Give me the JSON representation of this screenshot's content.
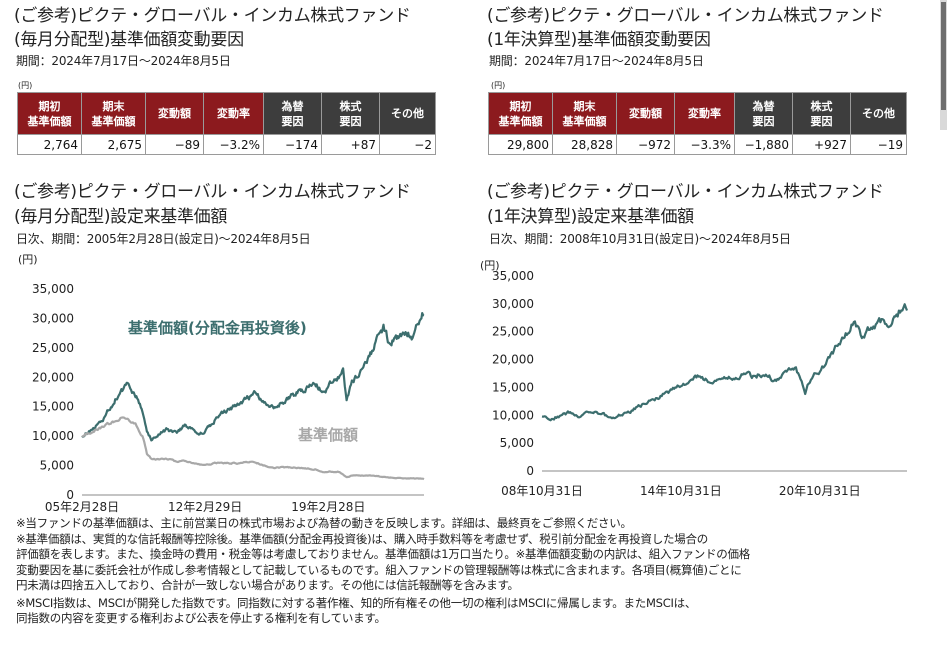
{
  "left": {
    "top_title_1": "(ご参考)ピクテ・グローバル・インカム株式ファンド",
    "top_title_2": "(毎月分配型)基準価額変動要因",
    "period": "期間：2024年7月17日～2024年8月5日",
    "unit": "(円)",
    "table": {
      "headers": [
        "期初\n基準価額",
        "期末\n基準価額",
        "変動額",
        "変動率",
        "為替\n要因",
        "株式\n要因",
        "その他"
      ],
      "values": [
        "2,764",
        "2,675",
        "−89",
        "−3.2%",
        "−174",
        "+87",
        "−2"
      ]
    },
    "chart_title_1": "(ご参考)ピクテ・グローバル・インカム株式ファンド",
    "chart_title_2": "(毎月分配型)設定来基準価額",
    "chart_period": "日次、期間：2005年2月28日(設定日)～2024年8月5日",
    "chart_unit": "(円)"
  },
  "right": {
    "top_title_1": "(ご参考)ピクテ・グローバル・インカム株式ファンド",
    "top_title_2": "(1年決算型)基準価額変動要因",
    "period": "期間：2024年7月17日～2024年8月5日",
    "unit": "(円)",
    "table": {
      "headers": [
        "期初\n基準価額",
        "期末\n基準価額",
        "変動額",
        "変動率",
        "為替\n要因",
        "株式\n要因",
        "その他"
      ],
      "values": [
        "29,800",
        "28,828",
        "−972",
        "−3.3%",
        "−1,880",
        "+927",
        "−19"
      ]
    },
    "chart_title_1": "(ご参考)ピクテ・グローバル・インカム株式ファンド",
    "chart_title_2": "(1年決算型)設定来基準価額",
    "chart_period": "日次、期間：2008年10月31日(設定日)～2024年8月5日",
    "chart_unit": "(円)"
  },
  "colors": {
    "header_red": "#8c1a1e",
    "header_dark": "#3d3d3d",
    "series_teal": "#3c6e6e",
    "series_gray": "#a8a8a8"
  },
  "chart_data": [
    {
      "type": "line",
      "ylim": [
        0,
        35000
      ],
      "yticks": [
        "0",
        "5,000",
        "10,000",
        "15,000",
        "20,000",
        "25,000",
        "30,000",
        "35,000"
      ],
      "xticks": [
        "05年2月28日",
        "12年2月29日",
        "19年2月28日"
      ],
      "grid": false,
      "series": [
        {
          "name": "基準価額(分配金再投資後)",
          "color": "#3c6e6e",
          "points": [
            [
              2005.16,
              10000
            ],
            [
              2005.6,
              10800
            ],
            [
              2006.0,
              11900
            ],
            [
              2006.5,
              13500
            ],
            [
              2007.0,
              16000
            ],
            [
              2007.4,
              17800
            ],
            [
              2007.8,
              18600
            ],
            [
              2008.0,
              17000
            ],
            [
              2008.3,
              16800
            ],
            [
              2008.6,
              14500
            ],
            [
              2008.85,
              11000
            ],
            [
              2009.1,
              9400
            ],
            [
              2009.5,
              10200
            ],
            [
              2010.0,
              11200
            ],
            [
              2010.5,
              10400
            ],
            [
              2011.0,
              11800
            ],
            [
              2011.5,
              11300
            ],
            [
              2011.8,
              10300
            ],
            [
              2012.16,
              10800
            ],
            [
              2012.6,
              12200
            ],
            [
              2013.0,
              13800
            ],
            [
              2013.5,
              14700
            ],
            [
              2014.0,
              15300
            ],
            [
              2014.5,
              16400
            ],
            [
              2015.0,
              17200
            ],
            [
              2015.5,
              15800
            ],
            [
              2016.0,
              14800
            ],
            [
              2016.5,
              15700
            ],
            [
              2017.0,
              16600
            ],
            [
              2017.5,
              17600
            ],
            [
              2018.0,
              18200
            ],
            [
              2018.5,
              18700
            ],
            [
              2018.9,
              17200
            ],
            [
              2019.16,
              18400
            ],
            [
              2019.6,
              19800
            ],
            [
              2020.0,
              20900
            ],
            [
              2020.2,
              15600
            ],
            [
              2020.5,
              19200
            ],
            [
              2021.0,
              21200
            ],
            [
              2021.5,
              23600
            ],
            [
              2022.0,
              26500
            ],
            [
              2022.3,
              28400
            ],
            [
              2022.7,
              25200
            ],
            [
              2023.0,
              26800
            ],
            [
              2023.5,
              28000
            ],
            [
              2023.9,
              27100
            ],
            [
              2024.2,
              29600
            ],
            [
              2024.5,
              31200
            ],
            [
              2024.6,
              30500
            ]
          ]
        },
        {
          "name": "基準価額",
          "color": "#a8a8a8",
          "points": [
            [
              2005.16,
              10000
            ],
            [
              2005.6,
              10500
            ],
            [
              2006.0,
              11200
            ],
            [
              2006.5,
              11800
            ],
            [
              2007.0,
              12600
            ],
            [
              2007.4,
              13200
            ],
            [
              2007.8,
              12600
            ],
            [
              2008.2,
              11900
            ],
            [
              2008.6,
              10000
            ],
            [
              2008.85,
              7000
            ],
            [
              2009.1,
              6200
            ],
            [
              2009.5,
              6000
            ],
            [
              2010.0,
              6100
            ],
            [
              2010.5,
              5700
            ],
            [
              2011.0,
              5800
            ],
            [
              2011.5,
              5400
            ],
            [
              2012.0,
              5100
            ],
            [
              2012.5,
              5300
            ],
            [
              2013.0,
              5500
            ],
            [
              2013.5,
              5400
            ],
            [
              2014.0,
              5400
            ],
            [
              2014.5,
              5600
            ],
            [
              2015.0,
              5600
            ],
            [
              2015.5,
              5000
            ],
            [
              2016.0,
              4600
            ],
            [
              2016.5,
              4700
            ],
            [
              2017.0,
              4700
            ],
            [
              2017.5,
              4600
            ],
            [
              2018.0,
              4500
            ],
            [
              2018.5,
              4300
            ],
            [
              2018.9,
              3900
            ],
            [
              2019.3,
              4000
            ],
            [
              2019.8,
              3900
            ],
            [
              2020.2,
              3000
            ],
            [
              2020.6,
              3400
            ],
            [
              2021.0,
              3300
            ],
            [
              2021.5,
              3300
            ],
            [
              2022.0,
              3200
            ],
            [
              2022.5,
              3000
            ],
            [
              2023.0,
              2900
            ],
            [
              2023.5,
              2800
            ],
            [
              2024.0,
              2800
            ],
            [
              2024.4,
              2800
            ],
            [
              2024.6,
              2700
            ]
          ]
        }
      ]
    },
    {
      "type": "line",
      "ylim": [
        0,
        35000
      ],
      "yticks": [
        "0",
        "5,000",
        "10,000",
        "15,000",
        "20,000",
        "25,000",
        "30,000",
        "35,000"
      ],
      "xticks": [
        "08年10月31日",
        "14年10月31日",
        "20年10月31日"
      ],
      "grid": false,
      "series": [
        {
          "name": "基準価額",
          "color": "#3c6e6e",
          "points": [
            [
              2008.83,
              10000
            ],
            [
              2009.1,
              9200
            ],
            [
              2009.6,
              9900
            ],
            [
              2010.0,
              10500
            ],
            [
              2010.5,
              9800
            ],
            [
              2011.0,
              10700
            ],
            [
              2011.5,
              10200
            ],
            [
              2011.8,
              9400
            ],
            [
              2012.2,
              10000
            ],
            [
              2012.6,
              10600
            ],
            [
              2013.0,
              11500
            ],
            [
              2013.5,
              12600
            ],
            [
              2014.0,
              13400
            ],
            [
              2014.83,
              15300
            ],
            [
              2015.2,
              16300
            ],
            [
              2015.6,
              17000
            ],
            [
              2016.0,
              16200
            ],
            [
              2016.5,
              16000
            ],
            [
              2017.0,
              16800
            ],
            [
              2017.5,
              17200
            ],
            [
              2018.0,
              17000
            ],
            [
              2018.5,
              17600
            ],
            [
              2018.9,
              16200
            ],
            [
              2019.3,
              17400
            ],
            [
              2019.8,
              18400
            ],
            [
              2020.2,
              14200
            ],
            [
              2020.5,
              17200
            ],
            [
              2020.83,
              18000
            ],
            [
              2021.2,
              20000
            ],
            [
              2021.6,
              22400
            ],
            [
              2022.0,
              24800
            ],
            [
              2022.3,
              26800
            ],
            [
              2022.7,
              24000
            ],
            [
              2023.0,
              25600
            ],
            [
              2023.5,
              26800
            ],
            [
              2023.9,
              26000
            ],
            [
              2024.2,
              28200
            ],
            [
              2024.5,
              29600
            ],
            [
              2024.6,
              28800
            ]
          ]
        }
      ]
    }
  ],
  "notes": [
    "※当ファンドの基準価額は、主に前営業日の株式市場および為替の動きを反映します。詳細は、最終頁をご参照ください。",
    "※基準価額は、実質的な信託報酬等控除後。基準価額(分配金再投資後)は、購入時手数料等を考慮せず、税引前分配金を再投資した場合の",
    "評価額を表します。また、換金時の費用・税金等は考慮しておりません。基準価額は1万口当たり。※基準価額変動の内訳は、組入ファンドの価格",
    "変動要因を基に委託会社が作成し参考情報として記載しているものです。組入ファンドの管理報酬等は株式に含まれます。各項目(概算値)ごとに",
    "円未満は四捨五入しており、合計が一致しない場合があります。その他には信託報酬等を含みます。",
    "※MSCI指数は、MSCIが開発した指数です。同指数に対する著作権、知的所有権その他一切の権利はMSCIに帰属します。またMSCIは、",
    "同指数の内容を変更する権利および公表を停止する権利を有しています。"
  ]
}
